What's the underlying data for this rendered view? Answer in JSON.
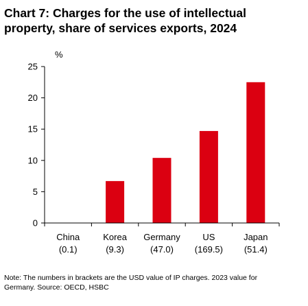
{
  "title_line1": "Chart 7: Charges for the use of intellectual",
  "title_line2": "property, share of services exports, 2024",
  "note_line1": "Note: The numbers in brackets are the USD value of IP charges. 2023 value for",
  "note_line2": "Germany. Source: OECD, HSBC",
  "chart_data": {
    "type": "bar",
    "title": "Chart 7: Charges for the use of intellectual property, share of services exports, 2024",
    "ylabel": "%",
    "xlabel": "",
    "ylim": [
      0,
      25
    ],
    "yticks": [
      0,
      5,
      10,
      15,
      20,
      25
    ],
    "grid": false,
    "legend": "none",
    "bar_color": "#db0011",
    "categories": [
      "China",
      "Korea",
      "Germany",
      "US",
      "Japan"
    ],
    "sublabels": [
      "(0.1)",
      "(9.3)",
      "(47.0)",
      "(169.5)",
      "(51.4)"
    ],
    "values": [
      0.0,
      6.7,
      10.4,
      14.7,
      22.5
    ]
  }
}
